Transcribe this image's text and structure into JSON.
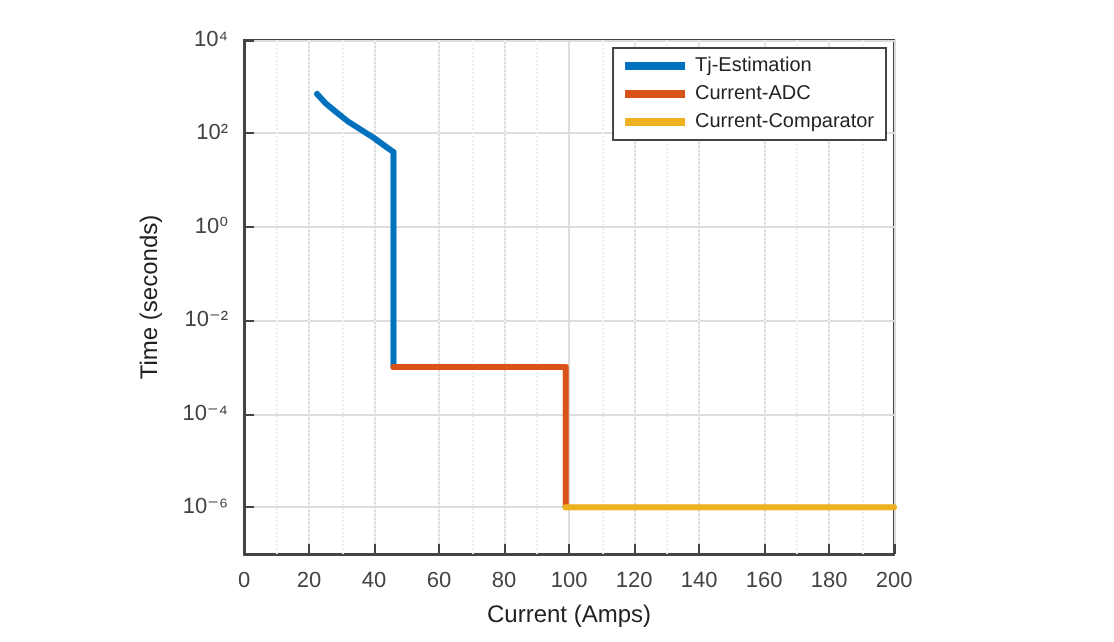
{
  "chart_data": {
    "type": "line",
    "xlabel": "Current (Amps)",
    "ylabel": "Time (seconds)",
    "log": "y",
    "grid": true,
    "legend": "top right",
    "marker": "none",
    "line_style": "solid",
    "xlim": [
      0,
      200
    ],
    "xticks": [
      0,
      20,
      40,
      60,
      80,
      100,
      120,
      140,
      160,
      180,
      200
    ],
    "ylim": [
      1e-07,
      10000
    ],
    "yticks": [
      {
        "value": 1e-06,
        "label": "10⁻⁶"
      },
      {
        "value": 0.0001,
        "label": "10⁻⁴"
      },
      {
        "value": 0.01,
        "label": "10⁻²"
      },
      {
        "value": 1,
        "label": "10⁰"
      },
      {
        "value": 100,
        "label": "10²"
      },
      {
        "value": 10000,
        "label": "10⁴"
      }
    ],
    "series": [
      {
        "name": "Tj-Estimation",
        "color": "#0072bd",
        "x": [
          22.5,
          25,
          28,
          32,
          36,
          40,
          44,
          46,
          46
        ],
        "values": [
          700,
          450,
          300,
          180,
          120,
          80,
          50,
          40,
          0.001
        ]
      },
      {
        "name": "Current-ADC",
        "color": "#d95319",
        "x": [
          46,
          99,
          99
        ],
        "values": [
          0.001,
          0.001,
          1e-06
        ]
      },
      {
        "name": "Current-Comparator",
        "color": "#edb120",
        "x": [
          99,
          200
        ],
        "values": [
          1e-06,
          1e-06
        ]
      }
    ]
  }
}
